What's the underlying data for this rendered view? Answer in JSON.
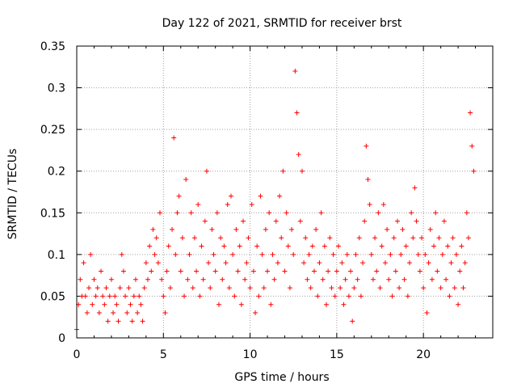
{
  "chart_data": {
    "type": "scatter",
    "title": "Day 122 of 2021, SRMTID for receiver brst",
    "xlabel": "GPS time / hours",
    "ylabel": "SRMTID / TECUs",
    "xlim": [
      0,
      24
    ],
    "ylim": [
      0,
      0.35
    ],
    "x_ticks": [
      0,
      5,
      10,
      15,
      20
    ],
    "x_tick_labels": [
      "0",
      "5",
      "10",
      "15",
      "20"
    ],
    "y_ticks": [
      0,
      0.05,
      0.1,
      0.15,
      0.2,
      0.25,
      0.3,
      0.35
    ],
    "y_tick_labels": [
      "0",
      "0.05",
      "0.1",
      "0.15",
      "0.2",
      "0.25",
      "0.3",
      "0.35"
    ],
    "grid": true,
    "marker": "+",
    "color": "#ff0000",
    "series": [
      {
        "name": "SRMTID",
        "points": [
          [
            0.0,
            0.01
          ],
          [
            0.1,
            0.04
          ],
          [
            0.2,
            0.07
          ],
          [
            0.3,
            0.05
          ],
          [
            0.4,
            0.09
          ],
          [
            0.5,
            0.05
          ],
          [
            0.6,
            0.03
          ],
          [
            0.7,
            0.06
          ],
          [
            0.8,
            0.1
          ],
          [
            0.9,
            0.04
          ],
          [
            1.0,
            0.07
          ],
          [
            1.1,
            0.05
          ],
          [
            1.2,
            0.06
          ],
          [
            1.3,
            0.03
          ],
          [
            1.4,
            0.08
          ],
          [
            1.5,
            0.05
          ],
          [
            1.6,
            0.04
          ],
          [
            1.7,
            0.06
          ],
          [
            1.8,
            0.02
          ],
          [
            1.9,
            0.05
          ],
          [
            2.0,
            0.07
          ],
          [
            2.1,
            0.03
          ],
          [
            2.2,
            0.05
          ],
          [
            2.3,
            0.04
          ],
          [
            2.4,
            0.02
          ],
          [
            2.5,
            0.06
          ],
          [
            2.6,
            0.1
          ],
          [
            2.7,
            0.08
          ],
          [
            2.8,
            0.05
          ],
          [
            2.9,
            0.03
          ],
          [
            3.0,
            0.06
          ],
          [
            3.1,
            0.04
          ],
          [
            3.2,
            0.02
          ],
          [
            3.3,
            0.05
          ],
          [
            3.4,
            0.07
          ],
          [
            3.5,
            0.03
          ],
          [
            3.6,
            0.05
          ],
          [
            3.7,
            0.04
          ],
          [
            3.8,
            0.02
          ],
          [
            3.9,
            0.06
          ],
          [
            4.0,
            0.09
          ],
          [
            4.1,
            0.07
          ],
          [
            4.2,
            0.11
          ],
          [
            4.3,
            0.08
          ],
          [
            4.4,
            0.13
          ],
          [
            4.5,
            0.1
          ],
          [
            4.6,
            0.12
          ],
          [
            4.7,
            0.09
          ],
          [
            4.8,
            0.15
          ],
          [
            4.9,
            0.07
          ],
          [
            5.0,
            0.05
          ],
          [
            5.1,
            0.03
          ],
          [
            5.2,
            0.08
          ],
          [
            5.3,
            0.11
          ],
          [
            5.4,
            0.06
          ],
          [
            5.5,
            0.13
          ],
          [
            5.6,
            0.24
          ],
          [
            5.7,
            0.1
          ],
          [
            5.8,
            0.15
          ],
          [
            5.9,
            0.17
          ],
          [
            6.0,
            0.08
          ],
          [
            6.1,
            0.12
          ],
          [
            6.2,
            0.05
          ],
          [
            6.3,
            0.19
          ],
          [
            6.4,
            0.07
          ],
          [
            6.5,
            0.1
          ],
          [
            6.6,
            0.15
          ],
          [
            6.7,
            0.06
          ],
          [
            6.8,
            0.12
          ],
          [
            6.9,
            0.08
          ],
          [
            7.0,
            0.16
          ],
          [
            7.1,
            0.05
          ],
          [
            7.2,
            0.11
          ],
          [
            7.3,
            0.07
          ],
          [
            7.4,
            0.14
          ],
          [
            7.5,
            0.2
          ],
          [
            7.6,
            0.09
          ],
          [
            7.7,
            0.06
          ],
          [
            7.8,
            0.13
          ],
          [
            7.9,
            0.1
          ],
          [
            8.0,
            0.08
          ],
          [
            8.1,
            0.15
          ],
          [
            8.2,
            0.04
          ],
          [
            8.3,
            0.12
          ],
          [
            8.4,
            0.07
          ],
          [
            8.5,
            0.11
          ],
          [
            8.6,
            0.09
          ],
          [
            8.7,
            0.16
          ],
          [
            8.8,
            0.06
          ],
          [
            8.9,
            0.17
          ],
          [
            9.0,
            0.1
          ],
          [
            9.1,
            0.05
          ],
          [
            9.2,
            0.13
          ],
          [
            9.3,
            0.08
          ],
          [
            9.4,
            0.11
          ],
          [
            9.5,
            0.04
          ],
          [
            9.6,
            0.14
          ],
          [
            9.7,
            0.07
          ],
          [
            9.8,
            0.09
          ],
          [
            9.9,
            0.12
          ],
          [
            10.0,
            0.06
          ],
          [
            10.1,
            0.16
          ],
          [
            10.2,
            0.08
          ],
          [
            10.3,
            0.03
          ],
          [
            10.4,
            0.11
          ],
          [
            10.5,
            0.05
          ],
          [
            10.6,
            0.17
          ],
          [
            10.7,
            0.1
          ],
          [
            10.8,
            0.06
          ],
          [
            10.9,
            0.13
          ],
          [
            11.0,
            0.08
          ],
          [
            11.1,
            0.15
          ],
          [
            11.2,
            0.04
          ],
          [
            11.3,
            0.1
          ],
          [
            11.4,
            0.07
          ],
          [
            11.5,
            0.14
          ],
          [
            11.6,
            0.09
          ],
          [
            11.7,
            0.17
          ],
          [
            11.8,
            0.12
          ],
          [
            11.9,
            0.2
          ],
          [
            12.0,
            0.08
          ],
          [
            12.1,
            0.15
          ],
          [
            12.2,
            0.11
          ],
          [
            12.3,
            0.06
          ],
          [
            12.4,
            0.13
          ],
          [
            12.5,
            0.1
          ],
          [
            12.6,
            0.32
          ],
          [
            12.7,
            0.27
          ],
          [
            12.8,
            0.22
          ],
          [
            12.9,
            0.14
          ],
          [
            13.0,
            0.2
          ],
          [
            13.1,
            0.09
          ],
          [
            13.2,
            0.12
          ],
          [
            13.3,
            0.07
          ],
          [
            13.4,
            0.1
          ],
          [
            13.5,
            0.06
          ],
          [
            13.6,
            0.11
          ],
          [
            13.7,
            0.08
          ],
          [
            13.8,
            0.13
          ],
          [
            13.9,
            0.05
          ],
          [
            14.0,
            0.09
          ],
          [
            14.1,
            0.15
          ],
          [
            14.2,
            0.07
          ],
          [
            14.3,
            0.11
          ],
          [
            14.4,
            0.04
          ],
          [
            14.5,
            0.08
          ],
          [
            14.6,
            0.12
          ],
          [
            14.7,
            0.06
          ],
          [
            14.8,
            0.1
          ],
          [
            14.9,
            0.05
          ],
          [
            15.0,
            0.08
          ],
          [
            15.1,
            0.11
          ],
          [
            15.2,
            0.06
          ],
          [
            15.3,
            0.09
          ],
          [
            15.4,
            0.04
          ],
          [
            15.5,
            0.07
          ],
          [
            15.6,
            0.1
          ],
          [
            15.7,
            0.05
          ],
          [
            15.8,
            0.08
          ],
          [
            15.9,
            0.02
          ],
          [
            16.0,
            0.06
          ],
          [
            16.1,
            0.1
          ],
          [
            16.2,
            0.07
          ],
          [
            16.3,
            0.12
          ],
          [
            16.4,
            0.05
          ],
          [
            16.5,
            0.09
          ],
          [
            16.6,
            0.14
          ],
          [
            16.7,
            0.23
          ],
          [
            16.8,
            0.19
          ],
          [
            16.9,
            0.16
          ],
          [
            17.0,
            0.1
          ],
          [
            17.1,
            0.07
          ],
          [
            17.2,
            0.12
          ],
          [
            17.3,
            0.08
          ],
          [
            17.4,
            0.15
          ],
          [
            17.5,
            0.06
          ],
          [
            17.6,
            0.11
          ],
          [
            17.7,
            0.16
          ],
          [
            17.8,
            0.09
          ],
          [
            17.9,
            0.13
          ],
          [
            18.0,
            0.07
          ],
          [
            18.1,
            0.1
          ],
          [
            18.2,
            0.05
          ],
          [
            18.3,
            0.12
          ],
          [
            18.4,
            0.08
          ],
          [
            18.5,
            0.14
          ],
          [
            18.6,
            0.06
          ],
          [
            18.7,
            0.1
          ],
          [
            18.8,
            0.13
          ],
          [
            18.9,
            0.07
          ],
          [
            19.0,
            0.11
          ],
          [
            19.1,
            0.05
          ],
          [
            19.2,
            0.09
          ],
          [
            19.3,
            0.15
          ],
          [
            19.4,
            0.12
          ],
          [
            19.5,
            0.18
          ],
          [
            19.6,
            0.14
          ],
          [
            19.7,
            0.1
          ],
          [
            19.8,
            0.08
          ],
          [
            19.9,
            0.12
          ],
          [
            20.0,
            0.06
          ],
          [
            20.1,
            0.1
          ],
          [
            20.2,
            0.03
          ],
          [
            20.3,
            0.09
          ],
          [
            20.4,
            0.13
          ],
          [
            20.5,
            0.07
          ],
          [
            20.6,
            0.11
          ],
          [
            20.7,
            0.15
          ],
          [
            20.8,
            0.08
          ],
          [
            20.9,
            0.12
          ],
          [
            21.0,
            0.06
          ],
          [
            21.1,
            0.1
          ],
          [
            21.2,
            0.14
          ],
          [
            21.3,
            0.07
          ],
          [
            21.4,
            0.11
          ],
          [
            21.5,
            0.05
          ],
          [
            21.6,
            0.09
          ],
          [
            21.7,
            0.12
          ],
          [
            21.8,
            0.06
          ],
          [
            21.9,
            0.1
          ],
          [
            22.0,
            0.04
          ],
          [
            22.1,
            0.08
          ],
          [
            22.2,
            0.11
          ],
          [
            22.3,
            0.06
          ],
          [
            22.4,
            0.09
          ],
          [
            22.5,
            0.15
          ],
          [
            22.6,
            0.12
          ],
          [
            22.7,
            0.27
          ],
          [
            22.8,
            0.23
          ],
          [
            22.9,
            0.2
          ]
        ]
      }
    ]
  }
}
